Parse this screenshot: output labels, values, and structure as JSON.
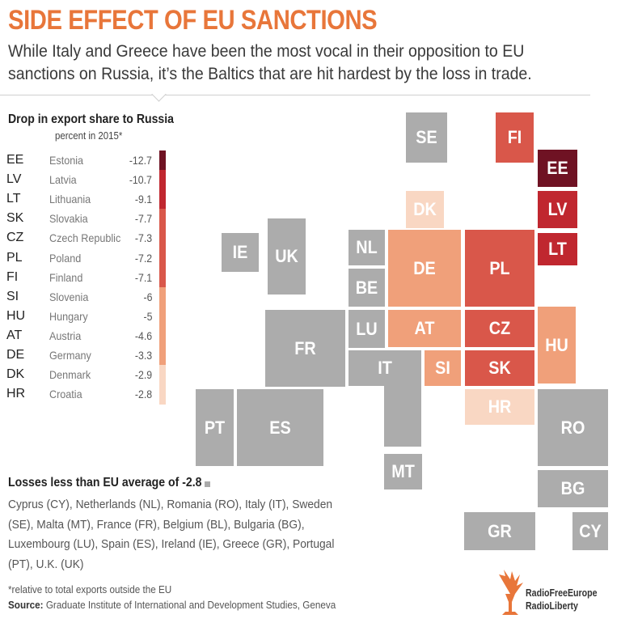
{
  "header": {
    "title": "SIDE EFFECT OF EU SANCTIONS",
    "subtitle": "While Italy and Greece have been the most vocal in their opposition to EU sanctions on Russia, it’s the Baltics that are hit hardest by the loss in trade."
  },
  "legend": {
    "title": "Drop in export share to Russia",
    "subtitle": "percent in 2015*"
  },
  "colors": {
    "grey": "#acacac",
    "scale": [
      "#f9d7c3",
      "#f0a07a",
      "#d9574a",
      "#c0272f",
      "#6f1223"
    ]
  },
  "chart_data": {
    "type": "tile-map",
    "title": "Drop in export share to Russia",
    "unit": "percent in 2015*",
    "countries": [
      {
        "code": "EE",
        "name": "Estonia",
        "value": -12.7
      },
      {
        "code": "LV",
        "name": "Latvia",
        "value": -10.7
      },
      {
        "code": "LT",
        "name": "Lithuania",
        "value": -9.1
      },
      {
        "code": "SK",
        "name": "Slovakia",
        "value": -7.7
      },
      {
        "code": "CZ",
        "name": "Czech Republic",
        "value": -7.3
      },
      {
        "code": "PL",
        "name": "Poland",
        "value": -7.2
      },
      {
        "code": "FI",
        "name": "Finland",
        "value": -7.1
      },
      {
        "code": "SI",
        "name": "Slovenia",
        "value": -6
      },
      {
        "code": "HU",
        "name": "Hungary",
        "value": -5
      },
      {
        "code": "AT",
        "name": "Austria",
        "value": -4.6
      },
      {
        "code": "DE",
        "name": "Germany",
        "value": -3.3
      },
      {
        "code": "DK",
        "name": "Denmark",
        "value": -2.9
      },
      {
        "code": "HR",
        "name": "Croatia",
        "value": -2.8
      }
    ],
    "grey_countries": [
      "SE",
      "IE",
      "UK",
      "NL",
      "BE",
      "LU",
      "FR",
      "IT",
      "PT",
      "ES",
      "MT",
      "RO",
      "BG",
      "GR",
      "CY"
    ]
  },
  "low_losses": {
    "title": "Losses less than EU average of -2.8",
    "text": "Cyprus (CY), Netherlands (NL), Romania (RO), Italy (IT), Sweden (SE), Malta (MT), France (FR), Belgium (BL), Bulgaria (BG), Luxembourg (LU), Spain (ES), Ireland (IE), Greece (GR), Portugal (PT), U.K. (UK)"
  },
  "footer": {
    "footnote": "*relative to total exports outside the EU",
    "source_label": "Source:",
    "source_text": "Graduate Institute of International and Development Studies, Geneva"
  },
  "logo": {
    "line1": "RadioFreeEurope",
    "line2": "RadioLiberty"
  }
}
